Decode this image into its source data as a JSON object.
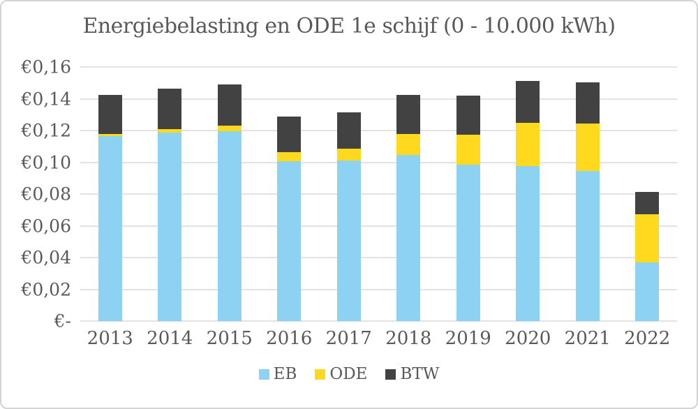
{
  "chart_data": {
    "type": "bar",
    "stacked": true,
    "title": "Energiebelasting en ODE 1e schijf (0 - 10.000 kWh)",
    "categories": [
      "2013",
      "2014",
      "2015",
      "2016",
      "2017",
      "2018",
      "2019",
      "2020",
      "2021",
      "2022"
    ],
    "series": [
      {
        "name": "EB",
        "color": "#8DD2F2",
        "values": [
          0.1165,
          0.1185,
          0.1196,
          0.1007,
          0.1013,
          0.1046,
          0.0986,
          0.0977,
          0.0943,
          0.0368
        ]
      },
      {
        "name": "ODE",
        "color": "#FFD91E",
        "values": [
          0.0011,
          0.0023,
          0.0036,
          0.0056,
          0.0074,
          0.0132,
          0.0189,
          0.0273,
          0.03,
          0.0305
        ]
      },
      {
        "name": "BTW",
        "color": "#424242",
        "values": [
          0.0247,
          0.0254,
          0.0259,
          0.0223,
          0.0228,
          0.0247,
          0.0247,
          0.0263,
          0.0261,
          0.0141
        ]
      }
    ],
    "totals": [
      0.1423,
      0.1462,
      0.1491,
      0.1286,
      0.1315,
      0.1425,
      0.1422,
      0.1513,
      0.1504,
      0.0814
    ],
    "ylim": [
      0,
      0.16
    ],
    "ytick_step": 0.02,
    "ytick_labels_bottom_to_top": [
      "€-",
      "€0,02",
      "€0,04",
      "€0,06",
      "€0,08",
      "€0,10",
      "€0,12",
      "€0,14",
      "€0,16"
    ],
    "grid": true,
    "legend_position": "bottom",
    "legend_labels": [
      "EB",
      "ODE",
      "BTW"
    ]
  },
  "styles": {
    "text_color": "#595959",
    "grid_color": "#E2E2E2",
    "background": "#FFFFFF",
    "border_color": "#D4D4D4"
  }
}
